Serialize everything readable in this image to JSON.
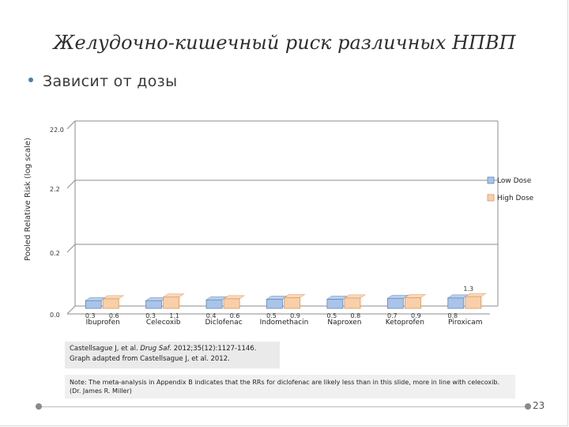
{
  "slide": {
    "title": "Желудочно-кишечный риск различных НПВП",
    "bullet": "Зависит от дозы",
    "reference_line1_pre": "Castellsague J, et al. ",
    "reference_line1_italic": "Drug Saf.",
    "reference_line1_post": " 2012;35(12):1127-1146.",
    "reference_line2": "Graph adapted from Castellsague J, et al. 2012.",
    "note": "Note: The meta-analysis in Appendix B indicates that the RRs for diclofenac are likely less than in this slide, more in line with celecoxib. (Dr. James R. Miller)",
    "page_number": "23"
  },
  "chart_data": {
    "type": "bar",
    "title": "",
    "xlabel": "",
    "ylabel": "Pooled Relative Risk (log scale)",
    "y_ticks": [
      "22.0",
      "2.2",
      "0.2",
      "0.0"
    ],
    "categories": [
      "Ibuprofen",
      "Celecoxib",
      "Diclofenac",
      "Indomethacin",
      "Naproxen",
      "Ketoprofen",
      "Piroxicam"
    ],
    "series": [
      {
        "name": "Low Dose",
        "values": [
          0.3,
          0.3,
          0.4,
          0.5,
          0.5,
          0.7,
          0.8
        ],
        "labels": [
          "0.3",
          "0.3",
          "0.4",
          "0.5",
          "0.5",
          "0.7",
          "0.8"
        ],
        "color": "#a9c4e8",
        "edge": "#5b86bf"
      },
      {
        "name": "High Dose",
        "values": [
          0.6,
          1.1,
          0.6,
          0.9,
          0.8,
          0.9,
          1.3
        ],
        "labels": [
          "0.6",
          "1.1",
          "0.6",
          "0.9",
          "0.8",
          "0.9",
          "1.3"
        ],
        "color": "#f8cfa8",
        "edge": "#d9955e"
      }
    ],
    "legend_position": "right",
    "grid": true
  }
}
